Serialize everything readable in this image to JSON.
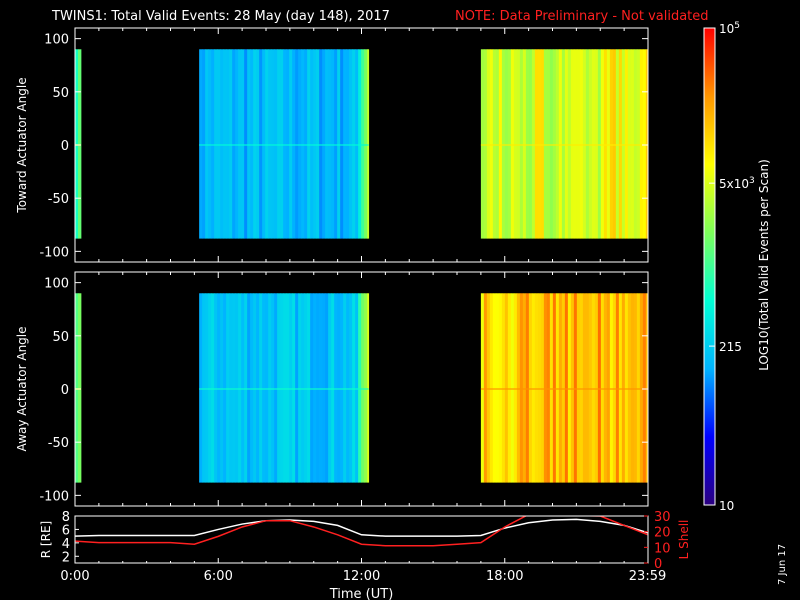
{
  "header": {
    "title": "TWINS1: Total Valid Events: 28 May (day 148), 2017",
    "note": "NOTE: Data Preliminary - Not validated",
    "note_color": "#ff2020"
  },
  "footer": {
    "date_stamp": "7 Jun 17"
  },
  "colorbar": {
    "label": "LOG10(Total Valid Events per Scan)",
    "tick_labels": [
      "10",
      "215",
      "5x10^3",
      "10^5"
    ],
    "tick_values": [
      10,
      215,
      5000,
      100000
    ],
    "scale": "log",
    "colormap": [
      "#2b007f",
      "#0000ff",
      "#00b4ff",
      "#00ffd4",
      "#7dff5a",
      "#ffff00",
      "#ff9600",
      "#ff0000"
    ]
  },
  "chart_data": [
    {
      "type": "heatmap",
      "panel": "toward",
      "ylabel": "Toward Actuator Angle",
      "ylim": [
        -110,
        110
      ],
      "yticks": [
        100,
        50,
        0,
        -50,
        -100
      ],
      "xlim": [
        0,
        24
      ],
      "angle_range": [
        -88,
        90
      ],
      "segments": [
        {
          "start": 0.0,
          "end": 0.25,
          "level": 0.5
        },
        {
          "start": 5.2,
          "end": 12.3,
          "level": 0.3
        },
        {
          "start": 17.0,
          "end": 24.0,
          "level": 0.62
        }
      ]
    },
    {
      "type": "heatmap",
      "panel": "away",
      "ylabel": "Away Actuator Angle",
      "ylim": [
        -110,
        110
      ],
      "yticks": [
        100,
        50,
        0,
        -50,
        -100
      ],
      "xlim": [
        0,
        24
      ],
      "angle_range": [
        -88,
        90
      ],
      "segments": [
        {
          "start": 0.0,
          "end": 0.25,
          "level": 0.55
        },
        {
          "start": 5.2,
          "end": 12.3,
          "level": 0.32
        },
        {
          "start": 17.0,
          "end": 24.0,
          "level": 0.74
        }
      ]
    },
    {
      "type": "line",
      "panel": "orbit",
      "xlabel": "Time (UT)",
      "xlim": [
        0,
        24
      ],
      "xtick_labels": [
        "0:00",
        "6:00",
        "12:00",
        "18:00",
        "23:59"
      ],
      "xtick_values": [
        0,
        6,
        12,
        18,
        23.98
      ],
      "y1label": "R [RE]",
      "y1lim": [
        1,
        8
      ],
      "y1ticks": [
        8,
        6,
        4,
        2
      ],
      "y2label": "L Shell",
      "y2lim": [
        0,
        30
      ],
      "y2ticks": [
        30,
        20,
        10,
        0
      ],
      "series": [
        {
          "axis": "left",
          "color": "#ffffff",
          "x": [
            0,
            1,
            2,
            3,
            4,
            5,
            6,
            7,
            8,
            9,
            10,
            11,
            12,
            13,
            14,
            15,
            16,
            17,
            18,
            19,
            20,
            21,
            22,
            23,
            24
          ],
          "y": [
            5.0,
            5.1,
            5.1,
            5.1,
            5.1,
            5.1,
            6.0,
            6.8,
            7.3,
            7.4,
            7.2,
            6.6,
            5.2,
            5.0,
            5.0,
            5.0,
            5.0,
            5.1,
            6.2,
            7.0,
            7.4,
            7.5,
            7.2,
            6.6,
            5.5
          ]
        },
        {
          "axis": "right",
          "color": "#ff2020",
          "x": [
            0,
            1,
            2,
            3,
            4,
            5,
            6,
            7,
            8,
            9,
            10,
            11,
            12,
            13,
            14,
            15,
            16,
            17,
            18,
            19,
            22,
            23,
            24
          ],
          "y": [
            14,
            13,
            13,
            13,
            13,
            12,
            17,
            23,
            27,
            27,
            23,
            18,
            12,
            11,
            11,
            11,
            12,
            13,
            23,
            31,
            30,
            24,
            18
          ]
        }
      ]
    }
  ]
}
